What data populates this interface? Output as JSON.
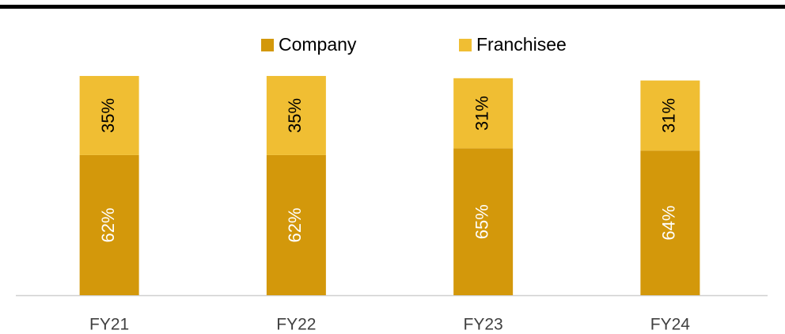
{
  "chart_data": {
    "type": "bar",
    "stacked": true,
    "categories": [
      "FY21",
      "FY22",
      "FY23",
      "FY24"
    ],
    "series": [
      {
        "name": "Company",
        "color": "#d3980b",
        "values": [
          62,
          62,
          65,
          64
        ],
        "value_labels": [
          "62%",
          "62%",
          "65%",
          "64%"
        ],
        "label_color": "#ffffff"
      },
      {
        "name": "Franchisee",
        "color": "#f0be33",
        "values": [
          35,
          35,
          31,
          31
        ],
        "value_labels": [
          "35%",
          "35%",
          "31%",
          "31%"
        ],
        "label_color": "#000000"
      }
    ],
    "legend": "top"
  }
}
